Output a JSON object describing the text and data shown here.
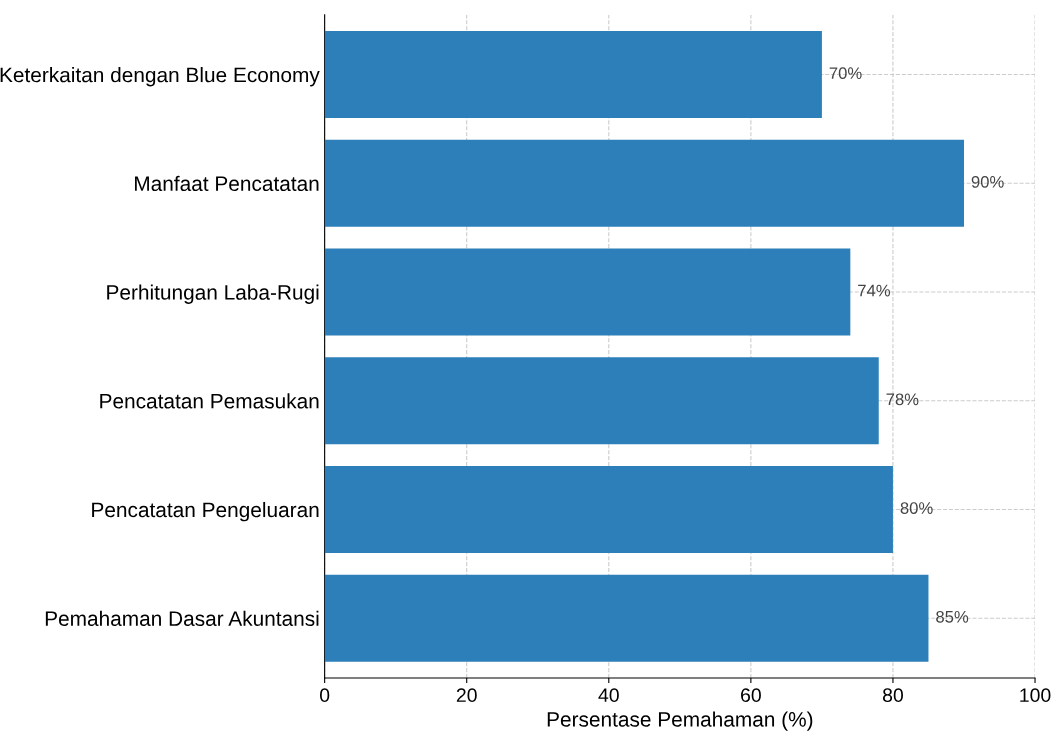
{
  "chart_data": {
    "type": "bar",
    "orientation": "horizontal",
    "xlabel": "Persentase Pemahaman (%)",
    "categories": [
      "Keterkaitan dengan Blue Economy",
      "Manfaat Pencatatan",
      "Perhitungan Laba-Rugi",
      "Pencatatan Pemasukan",
      "Pencatatan Pengeluaran",
      "Pemahaman Dasar Akuntansi"
    ],
    "values": [
      70,
      90,
      74,
      78,
      80,
      85
    ],
    "value_labels": [
      "70%",
      "90%",
      "74%",
      "78%",
      "80%",
      "85%"
    ],
    "color": "#2c7fb8",
    "xlim": [
      0,
      100
    ],
    "xticks": [
      0,
      20,
      40,
      60,
      80,
      100
    ],
    "grid": true
  }
}
